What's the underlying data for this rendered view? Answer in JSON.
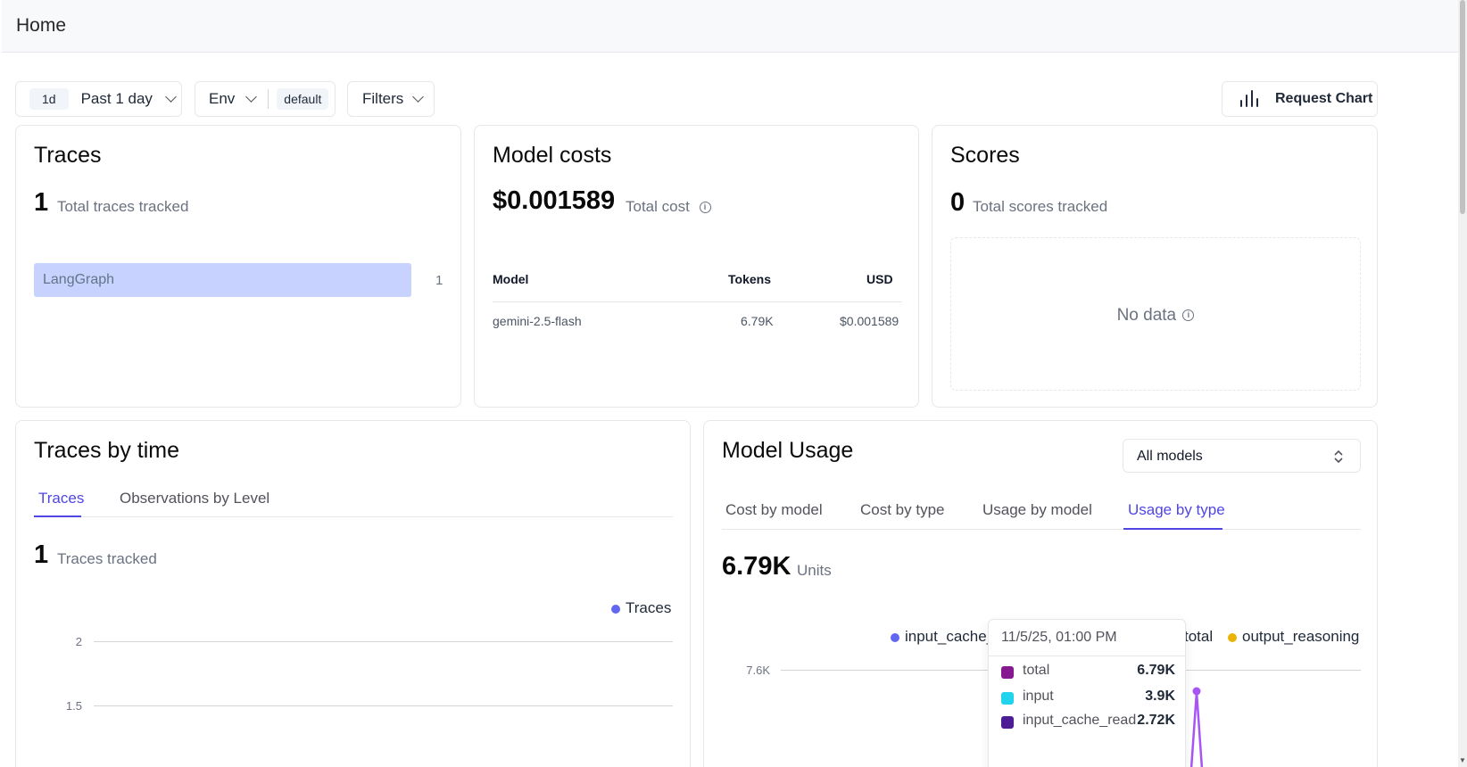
{
  "header": {
    "title": "Home"
  },
  "toolbar": {
    "date_chip": "1d",
    "date_label": "Past 1 day",
    "env_label": "Env",
    "env_value": "default",
    "filters_label": "Filters",
    "request_chart_label": "Request Chart"
  },
  "traces_card": {
    "title": "Traces",
    "total": "1",
    "total_label": "Total traces tracked",
    "bars": [
      {
        "label": "LangGraph",
        "value": "1",
        "fraction": 1.0
      }
    ]
  },
  "costs_card": {
    "title": "Model costs",
    "total": "$0.001589",
    "total_label": "Total cost",
    "columns": [
      "Model",
      "Tokens",
      "USD"
    ],
    "rows": [
      {
        "model": "gemini-2.5-flash",
        "tokens": "6.79K",
        "usd": "$0.001589"
      }
    ]
  },
  "scores_card": {
    "title": "Scores",
    "total": "0",
    "total_label": "Total scores tracked",
    "empty_text": "No data"
  },
  "traces_time_card": {
    "title": "Traces by time",
    "tabs": [
      "Traces",
      "Observations by Level"
    ],
    "active_tab": 0,
    "total": "1",
    "total_label": "Traces tracked",
    "legend": "Traces",
    "legend_color": "#6366f1",
    "y_ticks": [
      "2",
      "1.5"
    ]
  },
  "usage_card": {
    "title": "Model Usage",
    "select_value": "All models",
    "tabs": [
      "Cost by model",
      "Cost by type",
      "Usage by model",
      "Usage by type"
    ],
    "active_tab": 3,
    "total": "6.79K",
    "total_label": "Units",
    "legend": [
      {
        "label": "input_cache_r",
        "color": "#6366f1"
      },
      {
        "label": "total",
        "color": "#7c3aed"
      },
      {
        "label": "output_reasoning",
        "color": "#eab308"
      }
    ],
    "legend_partial_total": "total",
    "y_ticks": [
      "7.6K"
    ]
  },
  "tooltip": {
    "title": "11/5/25, 01:00 PM",
    "rows": [
      {
        "label": "total",
        "value": "6.79K",
        "color": "#86198f"
      },
      {
        "label": "input",
        "value": "3.9K",
        "color": "#22d3ee"
      },
      {
        "label": "input_cache_read",
        "value": "2.72K",
        "color": "#4c1d95"
      }
    ]
  },
  "colors": {
    "accent": "#4f46e5",
    "bar": "#c7d2fe",
    "series_total": "#a855f7"
  }
}
